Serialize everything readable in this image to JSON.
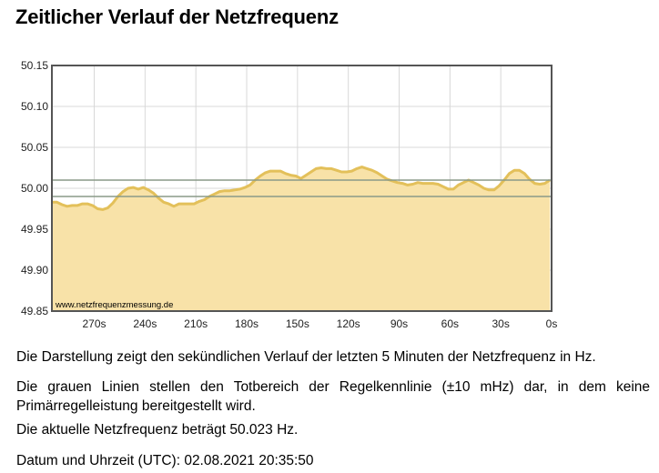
{
  "page": {
    "title": "Zeitlicher Verlauf der Netzfrequenz",
    "paragraph1": "Die Darstellung zeigt den sekündlichen Verlauf der letzten 5 Minuten der Netzfrequenz in Hz.",
    "paragraph2": "Die grauen Linien stellen den Totbereich der Regelkennlinie (±10 mHz) dar, in dem keine Primärregelleistung bereitgestellt wird.",
    "paragraph3": "Die aktuelle Netzfrequenz beträgt 50.023 Hz.",
    "paragraph4": "Datum und Uhrzeit (UTC): 02.08.2021 20:35:50"
  },
  "chart_data": {
    "type": "area",
    "watermark": "www.netzfrequenzmessung.de",
    "x_unit_note": "seconds before now",
    "xlim": [
      295,
      0
    ],
    "ylim": [
      49.85,
      50.15
    ],
    "y_ticks": [
      50.15,
      50.1,
      50.05,
      50.0,
      49.95,
      49.9,
      49.85
    ],
    "y_tick_labels": [
      "50.15",
      "50.10",
      "50.05",
      "50.00",
      "49.95",
      "49.90",
      "49.85"
    ],
    "x_ticks": [
      270,
      240,
      210,
      180,
      150,
      120,
      90,
      60,
      30,
      0
    ],
    "x_tick_labels": [
      "270s",
      "240s",
      "210s",
      "180s",
      "150s",
      "120s",
      "90s",
      "60s",
      "30s",
      "0s"
    ],
    "grid": true,
    "deadband": [
      49.99,
      50.01
    ],
    "colors": {
      "line": "#e3c05a",
      "fill": "#f8e2a8",
      "deadband_line": "#8a9a88",
      "frame": "#555555"
    },
    "series": [
      {
        "x": [
          295,
          292,
          289,
          286,
          283,
          280,
          277,
          274,
          271,
          268,
          265,
          262,
          259,
          256,
          253,
          250,
          247,
          244,
          241,
          238,
          235,
          232,
          229,
          226,
          223,
          220,
          217,
          214,
          211,
          208,
          205,
          202,
          199,
          196,
          193,
          190,
          187,
          184,
          181,
          178,
          175,
          172,
          169,
          166,
          163,
          160,
          157,
          154,
          151,
          148,
          145,
          142,
          139,
          136,
          133,
          130,
          127,
          124,
          121,
          118,
          115,
          112,
          109,
          106,
          103,
          100,
          97,
          94,
          91,
          88,
          85,
          82,
          79,
          76,
          73,
          70,
          67,
          64,
          61,
          58,
          55,
          52,
          49,
          46,
          43,
          40,
          37,
          34,
          31,
          28,
          25,
          22,
          19,
          16,
          13,
          10,
          7,
          4,
          1
        ],
        "y": [
          49.983,
          49.983,
          49.98,
          49.978,
          49.979,
          49.979,
          49.981,
          49.981,
          49.979,
          49.975,
          49.974,
          49.976,
          49.982,
          49.99,
          49.996,
          50.0,
          50.001,
          49.999,
          50.001,
          49.998,
          49.994,
          49.988,
          49.983,
          49.981,
          49.978,
          49.981,
          49.981,
          49.981,
          49.981,
          49.984,
          49.986,
          49.99,
          49.993,
          49.996,
          49.997,
          49.997,
          49.998,
          49.999,
          50.001,
          50.004,
          50.01,
          50.015,
          50.019,
          50.021,
          50.021,
          50.021,
          50.018,
          50.016,
          50.015,
          50.012,
          50.016,
          50.02,
          50.024,
          50.025,
          50.024,
          50.024,
          50.022,
          50.02,
          50.02,
          50.021,
          50.024,
          50.026,
          50.024,
          50.022,
          50.019,
          50.015,
          50.011,
          50.009,
          50.007,
          50.006,
          50.004,
          50.005,
          50.007,
          50.006,
          50.006,
          50.006,
          50.005,
          50.002,
          49.999,
          49.999,
          50.004,
          50.007,
          50.01,
          50.007,
          50.004,
          50.0,
          49.998,
          49.998,
          50.003,
          50.01,
          50.018,
          50.022,
          50.022,
          50.018,
          50.011,
          50.006,
          50.005,
          50.006,
          50.01
        ]
      }
    ]
  }
}
